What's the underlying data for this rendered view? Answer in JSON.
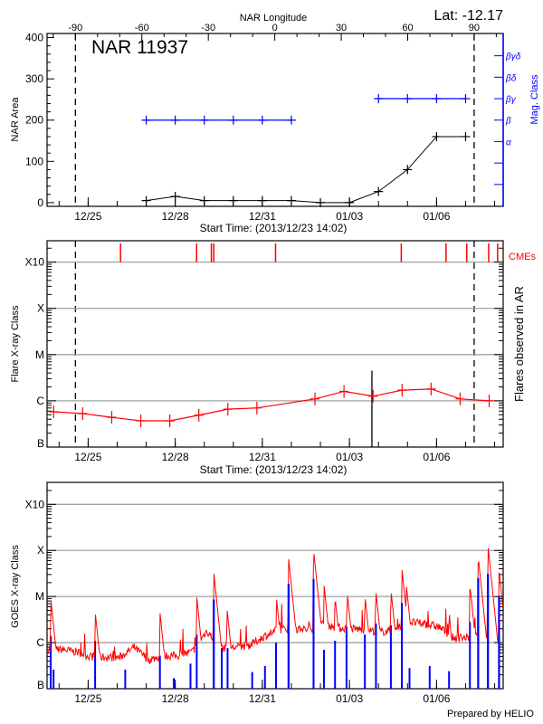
{
  "header": {
    "lat_label": "Lat: -12.17",
    "footer": "Prepared by HELIO"
  },
  "colors": {
    "area": "#000000",
    "mag_class": "#0000ff",
    "flare": "#ff0000",
    "cme": "#ff0000",
    "goes_long": "#ff0000",
    "goes_short": "#0000ff",
    "grid": "#a0a0a0",
    "axis": "#000000"
  },
  "x_axis": {
    "xlim": [
      "2013-12-23T14:02",
      "2014-01-08T07:05"
    ],
    "ticks": [
      "2013-12-25T00:00",
      "2013-12-28T00:00",
      "2013-12-31T00:00",
      "2014-01-03T00:00",
      "2014-01-06T00:00"
    ],
    "tick_labels": [
      "12/25",
      "12/28",
      "12/31",
      "01/03",
      "01/06"
    ]
  },
  "chart_data": [
    {
      "type": "line",
      "title": "NAR 11937",
      "top_xlabel": "NAR Longitude",
      "xlabel": "Start Time: (2013/12/23 14:02)",
      "ylabel": "NAR Area",
      "y2label": "Mag. Class",
      "ylim": [
        -9,
        410
      ],
      "y_ticks": [
        0,
        100,
        200,
        300,
        400
      ],
      "y_tick_labels": [
        "0",
        "100",
        "200",
        "300",
        "400"
      ],
      "longitude_range": [
        -102.8,
        103.1
      ],
      "longitude_ticks": [
        -90,
        -60,
        -30,
        0,
        30,
        60,
        90
      ],
      "longitude_tick_labels": [
        "-90",
        "-60",
        "-30",
        "0",
        "30",
        "60",
        "90"
      ],
      "limb_longitudes": [
        -90,
        90
      ],
      "area": {
        "dates": [
          "2013-12-27T00:00",
          "2013-12-28T00:00",
          "2013-12-29T00:00",
          "2013-12-30T00:00",
          "2013-12-31T00:00",
          "2014-01-01T00:00",
          "2014-01-02T00:00",
          "2014-01-03T00:00",
          "2014-01-04T00:00",
          "2014-01-05T00:00",
          "2014-01-06T00:00",
          "2014-01-07T00:00"
        ],
        "values": [
          5,
          15,
          5,
          5,
          5,
          5,
          0,
          0,
          27,
          80,
          160,
          160
        ]
      },
      "mag_class": {
        "levels": [
          "α",
          "β",
          "βγ",
          "βδ",
          "βγδ"
        ],
        "dates": [
          "2013-12-27T00:00",
          "2013-12-28T00:00",
          "2013-12-29T00:00",
          "2013-12-30T00:00",
          "2013-12-31T00:00",
          "2014-01-01T00:00",
          "2014-01-04T00:00",
          "2014-01-05T00:00",
          "2014-01-06T00:00",
          "2014-01-07T00:00"
        ],
        "values": [
          "β",
          "β",
          "β",
          "β",
          "β",
          "β",
          "βγ",
          "βγ",
          "βγ",
          "βγ"
        ]
      }
    },
    {
      "type": "line",
      "xlabel": "Start Time: (2013/12/23 14:02)",
      "ylabel": "Flare X-ray Class",
      "y2label": "Flares observed in AR",
      "cme_label": "CMEs",
      "y_scale": "log",
      "ylim": [
        1e-07,
        0.0029
      ],
      "y_ticks": [
        1e-07,
        1e-06,
        1e-05,
        0.0001,
        0.001
      ],
      "y_tick_labels": [
        "B",
        "C",
        "M",
        "X",
        "X10"
      ],
      "gridlines": [
        1e-06,
        1e-05,
        0.0001,
        0.001
      ],
      "limb_longitudes": [
        -90,
        90
      ],
      "flare_trend": {
        "dates": [
          "2013-12-23T19:30",
          "2013-12-24T19:30",
          "2013-12-25T19:30",
          "2013-12-26T19:30",
          "2013-12-27T19:30",
          "2013-12-28T19:30",
          "2013-12-29T19:30",
          "2013-12-30T19:30",
          "2014-01-01T19:30",
          "2014-01-02T19:30",
          "2014-01-03T19:30",
          "2014-01-04T19:30",
          "2014-01-05T19:30",
          "2014-01-06T19:30",
          "2014-01-07T19:30"
        ],
        "values": [
          5.8e-07,
          5.3e-07,
          4.4e-07,
          3.7e-07,
          3.7e-07,
          4.9e-07,
          6.6e-07,
          7e-07,
          1.1e-06,
          1.6e-06,
          1.26e-06,
          1.7e-06,
          1.8e-06,
          1.1e-06,
          1e-06
        ]
      },
      "flares_observed": [
        {
          "date": "2014-01-03T18:35",
          "flux": 4.5e-06
        }
      ],
      "cme_times": [
        "2013-12-26T02:45",
        "2013-12-28T17:40",
        "2013-12-29T05:50",
        "2013-12-29T07:50",
        "2013-12-31T10:55",
        "2014-01-04T18:50",
        "2014-01-06T07:50",
        "2014-01-07T01:00",
        "2014-01-07T19:05",
        "2014-01-08T02:30"
      ]
    },
    {
      "type": "line",
      "ylabel": "GOES X-ray Class",
      "y_scale": "log",
      "ylim": [
        1e-07,
        0.003
      ],
      "y_ticks": [
        1e-07,
        1e-06,
        1e-05,
        0.0001,
        0.001
      ],
      "y_tick_labels": [
        "B",
        "C",
        "M",
        "X",
        "X10"
      ],
      "gridlines": [
        1e-06,
        1e-05,
        0.0001,
        0.001
      ],
      "goes_long_background": {
        "start": "2013-12-23T14:02",
        "step_hours": 12,
        "values": [
          7.1e-07,
          7.1e-07,
          6.3e-07,
          5e-07,
          4.8e-07,
          4.8e-07,
          7.9e-07,
          4.2e-07,
          5.2e-07,
          5.2e-07,
          6.3e-07,
          1.8e-06,
          7.6e-07,
          7.9e-07,
          8.9e-07,
          1.4e-06,
          1.9e-06,
          2e-06,
          1.9e-06,
          2.5e-06,
          2.1e-06,
          2e-06,
          1.9e-06,
          1.7e-06,
          1.9e-06,
          2.8e-06,
          2.5e-06,
          2.2e-06,
          1.26e-06,
          1.3e-06,
          1.4e-06,
          1.26e-06
        ]
      },
      "goes_long_peaks": [
        {
          "date": "2013-12-23T17:05",
          "flux": 9.3e-06
        },
        {
          "date": "2013-12-25T05:45",
          "flux": 4.9e-06
        },
        {
          "date": "2013-12-27T11:20",
          "flux": 4.7e-06
        },
        {
          "date": "2013-12-28T17:45",
          "flux": 1e-05
        },
        {
          "date": "2013-12-29T07:50",
          "flux": 3.4e-05
        },
        {
          "date": "2013-12-29T18:40",
          "flux": 5.9e-06
        },
        {
          "date": "2013-12-31T11:40",
          "flux": 9.3e-06
        },
        {
          "date": "2013-12-31T21:40",
          "flux": 6.9e-05
        },
        {
          "date": "2014-01-01T18:20",
          "flux": 0.000105
        },
        {
          "date": "2014-01-02T02:55",
          "flux": 1.9e-05
        },
        {
          "date": "2014-01-02T12:05",
          "flux": 1e-05
        },
        {
          "date": "2014-01-02T22:05",
          "flux": 1.3e-05
        },
        {
          "date": "2014-01-03T12:45",
          "flux": 1.1e-05
        },
        {
          "date": "2014-01-03T21:55",
          "flux": 1.26e-05
        },
        {
          "date": "2014-01-04T10:15",
          "flux": 1.45e-05
        },
        {
          "date": "2014-01-04T19:20",
          "flux": 4.2e-05
        },
        {
          "date": "2014-01-04T22:50",
          "flux": 2e-05
        },
        {
          "date": "2014-01-06T10:20",
          "flux": 4.1e-06
        },
        {
          "date": "2014-01-07T03:35",
          "flux": 1.8e-05
        },
        {
          "date": "2014-01-07T10:25",
          "flux": 7.5e-05
        },
        {
          "date": "2014-01-07T18:30",
          "flux": 0.00013
        },
        {
          "date": "2014-01-08T03:40",
          "flux": 3.9e-05
        }
      ],
      "goes_short_peaks": [
        {
          "date": "2013-12-23T17:05",
          "flux": 1.4e-06
        },
        {
          "date": "2013-12-23T19:25",
          "flux": 2.6e-07
        },
        {
          "date": "2013-12-25T05:45",
          "flux": 1.1e-06
        },
        {
          "date": "2013-12-26T06:40",
          "flux": 2.6e-07
        },
        {
          "date": "2013-12-27T11:20",
          "flux": 5.2e-07
        },
        {
          "date": "2013-12-27T22:50",
          "flux": 1.7e-07
        },
        {
          "date": "2013-12-28T12:35",
          "flux": 3.5e-07
        },
        {
          "date": "2013-12-28T17:45",
          "flux": 1.5e-06
        },
        {
          "date": "2013-12-29T07:50",
          "flux": 8.6e-06
        },
        {
          "date": "2013-12-29T14:25",
          "flux": 7.6e-07
        },
        {
          "date": "2013-12-29T19:15",
          "flux": 7.6e-07
        },
        {
          "date": "2013-12-30T15:35",
          "flux": 2.3e-07
        },
        {
          "date": "2013-12-31T02:10",
          "flux": 3.1e-07
        },
        {
          "date": "2013-12-31T11:20",
          "flux": 1e-06
        },
        {
          "date": "2013-12-31T21:40",
          "flux": 1.9e-05
        },
        {
          "date": "2014-01-01T18:20",
          "flux": 2.4e-05
        },
        {
          "date": "2014-01-02T02:55",
          "flux": 7e-07
        },
        {
          "date": "2014-01-02T12:05",
          "flux": 1.1e-06
        },
        {
          "date": "2014-01-02T21:35",
          "flux": 2.2e-06
        },
        {
          "date": "2014-01-03T12:45",
          "flux": 1.5e-06
        },
        {
          "date": "2014-01-03T21:55",
          "flux": 2.6e-06
        },
        {
          "date": "2014-01-04T10:15",
          "flux": 2.4e-06
        },
        {
          "date": "2014-01-04T19:20",
          "flux": 7.2e-06
        },
        {
          "date": "2014-01-05T01:40",
          "flux": 2.8e-07
        },
        {
          "date": "2014-01-05T18:20",
          "flux": 3.1e-07
        },
        {
          "date": "2014-01-06T10:20",
          "flux": 2.4e-07
        },
        {
          "date": "2014-01-07T03:35",
          "flux": 2.8e-06
        },
        {
          "date": "2014-01-07T10:25",
          "flux": 2.5e-05
        },
        {
          "date": "2014-01-07T18:30",
          "flux": 3.1e-05
        },
        {
          "date": "2014-01-08T03:40",
          "flux": 1e-05
        }
      ]
    }
  ]
}
